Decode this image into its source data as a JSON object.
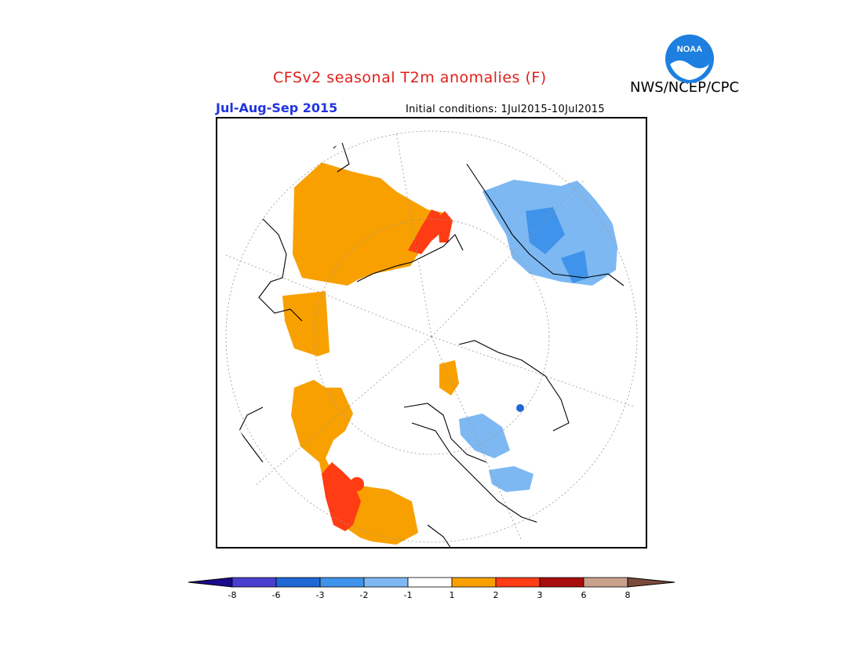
{
  "header": {
    "title": "CFSv2 seasonal T2m anomalies (F)",
    "agency": "NWS/NCEP/CPC",
    "season": "Jul-Aug-Sep 2015",
    "initial_conditions": "Initial conditions: 1Jul2015-10Jul2015"
  },
  "logo": {
    "text": "NOAA"
  },
  "colors": {
    "title": "#e0201a",
    "season": "#2034e0"
  },
  "legend": {
    "labels": [
      "-8",
      "-6",
      "-3",
      "-2",
      "-1",
      "1",
      "2",
      "3",
      "6",
      "8"
    ],
    "colors": [
      "#1a0a8c",
      "#4a3fcf",
      "#1f68d6",
      "#3f93ea",
      "#7db8f2",
      "#ffffff",
      "#f8a000",
      "#ff3c14",
      "#a80c0c",
      "#c8a08c",
      "#7a4a3a"
    ]
  },
  "map": {
    "projection": "north polar stereographic",
    "regions": [
      {
        "name": "siberia-warm",
        "category": "1 to 2"
      },
      {
        "name": "north-america-warm",
        "category": "1 to 2"
      },
      {
        "name": "europe-cool",
        "category": "-2 to -1"
      },
      {
        "name": "greenland-cool",
        "category": "-2 to -1"
      }
    ]
  }
}
